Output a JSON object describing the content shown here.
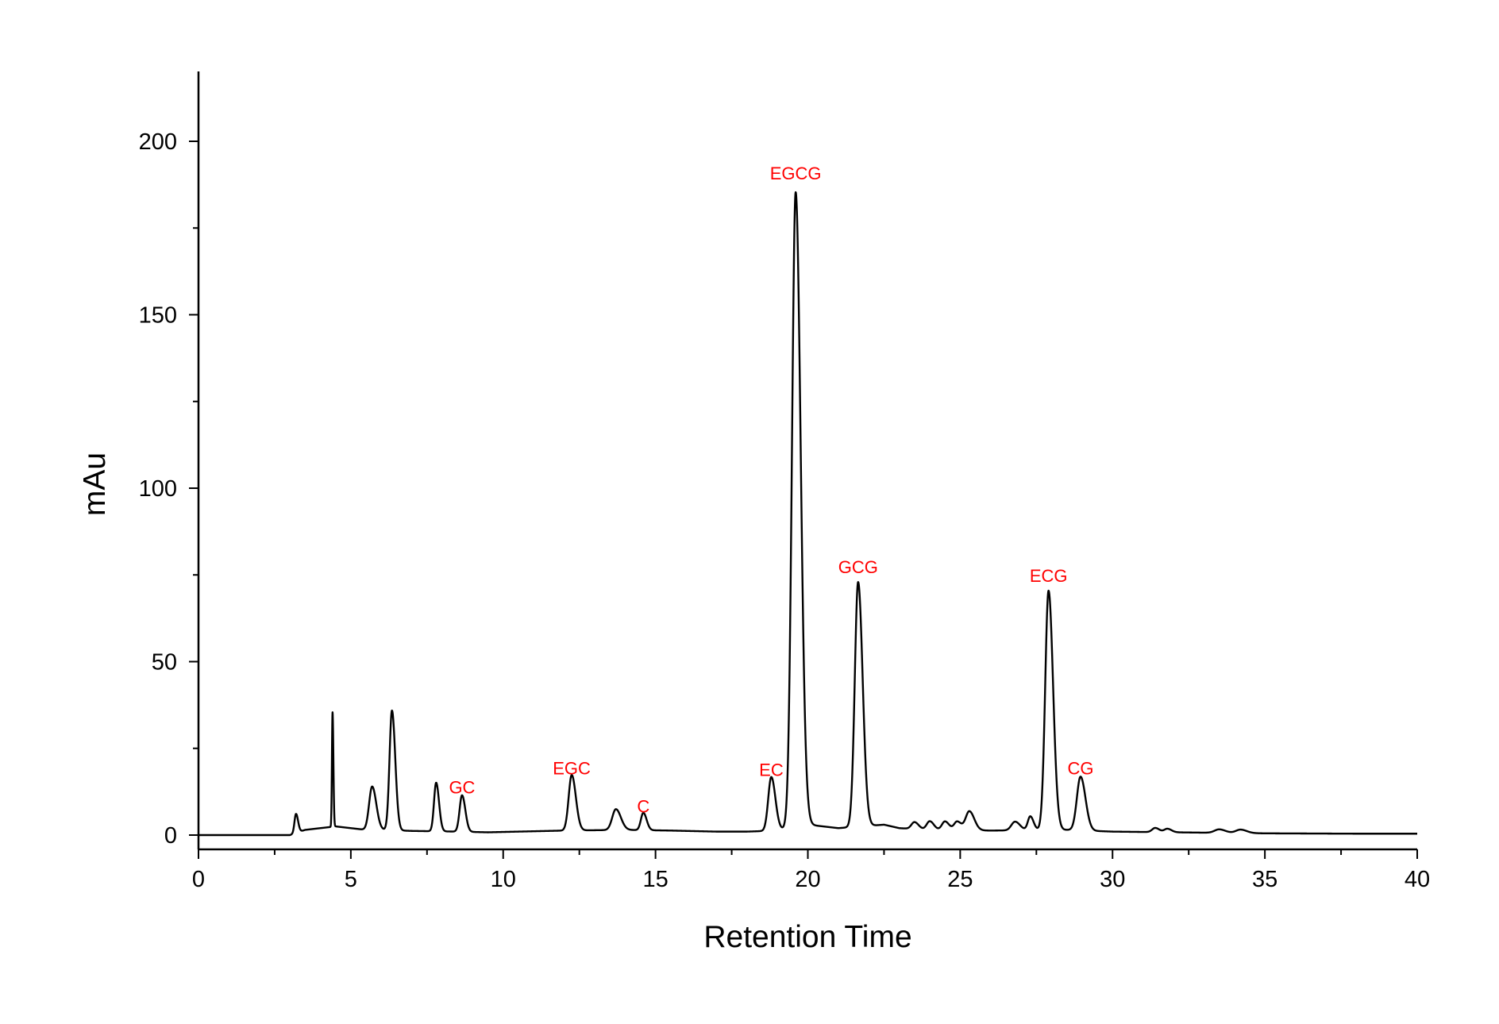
{
  "chart_data": {
    "type": "line",
    "title": "",
    "xlabel": "Retention Time",
    "ylabel": "mAu",
    "xlim": [
      0,
      40
    ],
    "ylim": [
      -5,
      220
    ],
    "x_ticks": [
      0,
      5,
      10,
      15,
      20,
      25,
      30,
      35,
      40
    ],
    "y_ticks": [
      0,
      50,
      100,
      150,
      200
    ],
    "grid": false,
    "legend": "none",
    "colors": {
      "trace": "#000000",
      "annotation": "#ff0000"
    },
    "baseline": {
      "x": [
        0,
        3.0,
        3.5,
        4.0,
        4.5,
        5.0,
        5.5,
        6.0,
        7.0,
        8.5,
        9.5,
        10.5,
        12.0,
        14.0,
        15.5,
        17.0,
        18.0,
        19.0,
        20.0,
        21.0,
        22.5,
        23.0,
        24.0,
        26.0,
        28.5,
        30.0,
        32.0,
        35.0,
        38.0,
        40.0
      ],
      "y": [
        0,
        0,
        1.5,
        2.0,
        2.5,
        2.0,
        1.5,
        1.5,
        1.2,
        1.0,
        0.8,
        1.0,
        1.3,
        1.5,
        1.3,
        1.0,
        1.0,
        1.3,
        3.0,
        2.0,
        3.0,
        2.0,
        1.5,
        1.3,
        1.5,
        1.0,
        0.8,
        0.5,
        0.4,
        0.4
      ]
    },
    "peaks": [
      {
        "rt": 3.2,
        "height": 5.5,
        "width": 0.05
      },
      {
        "rt": 4.4,
        "height": 33,
        "width": 0.02
      },
      {
        "rt": 5.7,
        "height": 12.5,
        "width": 0.1
      },
      {
        "rt": 6.35,
        "height": 34.5,
        "width": 0.08
      },
      {
        "rt": 7.8,
        "height": 14,
        "width": 0.07
      },
      {
        "rt": 8.65,
        "height": 10.5,
        "width": 0.08
      },
      {
        "rt": 12.25,
        "height": 16,
        "width": 0.1
      },
      {
        "rt": 13.7,
        "height": 6,
        "width": 0.12
      },
      {
        "rt": 14.6,
        "height": 5,
        "width": 0.08
      },
      {
        "rt": 18.8,
        "height": 15.5,
        "width": 0.1
      },
      {
        "rt": 19.6,
        "height": 183,
        "width": 0.12
      },
      {
        "rt": 21.65,
        "height": 70.5,
        "width": 0.11
      },
      {
        "rt": 23.5,
        "height": 2,
        "width": 0.1
      },
      {
        "rt": 24.0,
        "height": 2.5,
        "width": 0.1
      },
      {
        "rt": 24.5,
        "height": 2.5,
        "width": 0.1
      },
      {
        "rt": 24.9,
        "height": 2.5,
        "width": 0.1
      },
      {
        "rt": 25.3,
        "height": 5.5,
        "width": 0.12
      },
      {
        "rt": 26.8,
        "height": 2.5,
        "width": 0.12
      },
      {
        "rt": 27.3,
        "height": 4,
        "width": 0.08
      },
      {
        "rt": 27.9,
        "height": 69,
        "width": 0.11
      },
      {
        "rt": 28.95,
        "height": 15.5,
        "width": 0.12
      },
      {
        "rt": 31.4,
        "height": 1.2,
        "width": 0.1
      },
      {
        "rt": 31.8,
        "height": 1.0,
        "width": 0.1
      },
      {
        "rt": 33.5,
        "height": 1.0,
        "width": 0.15
      },
      {
        "rt": 34.2,
        "height": 1.0,
        "width": 0.15
      }
    ],
    "annotations": [
      {
        "label": "GC",
        "x": 8.65,
        "y": 12.0
      },
      {
        "label": "EGC",
        "x": 12.25,
        "y": 17.5
      },
      {
        "label": "C",
        "x": 14.6,
        "y": 6.5
      },
      {
        "label": "EC",
        "x": 18.8,
        "y": 17.0
      },
      {
        "label": "EGCG",
        "x": 19.6,
        "y": 189
      },
      {
        "label": "GCG",
        "x": 21.65,
        "y": 75.5
      },
      {
        "label": "ECG",
        "x": 27.9,
        "y": 73
      },
      {
        "label": "CG",
        "x": 28.95,
        "y": 17.5
      }
    ]
  }
}
